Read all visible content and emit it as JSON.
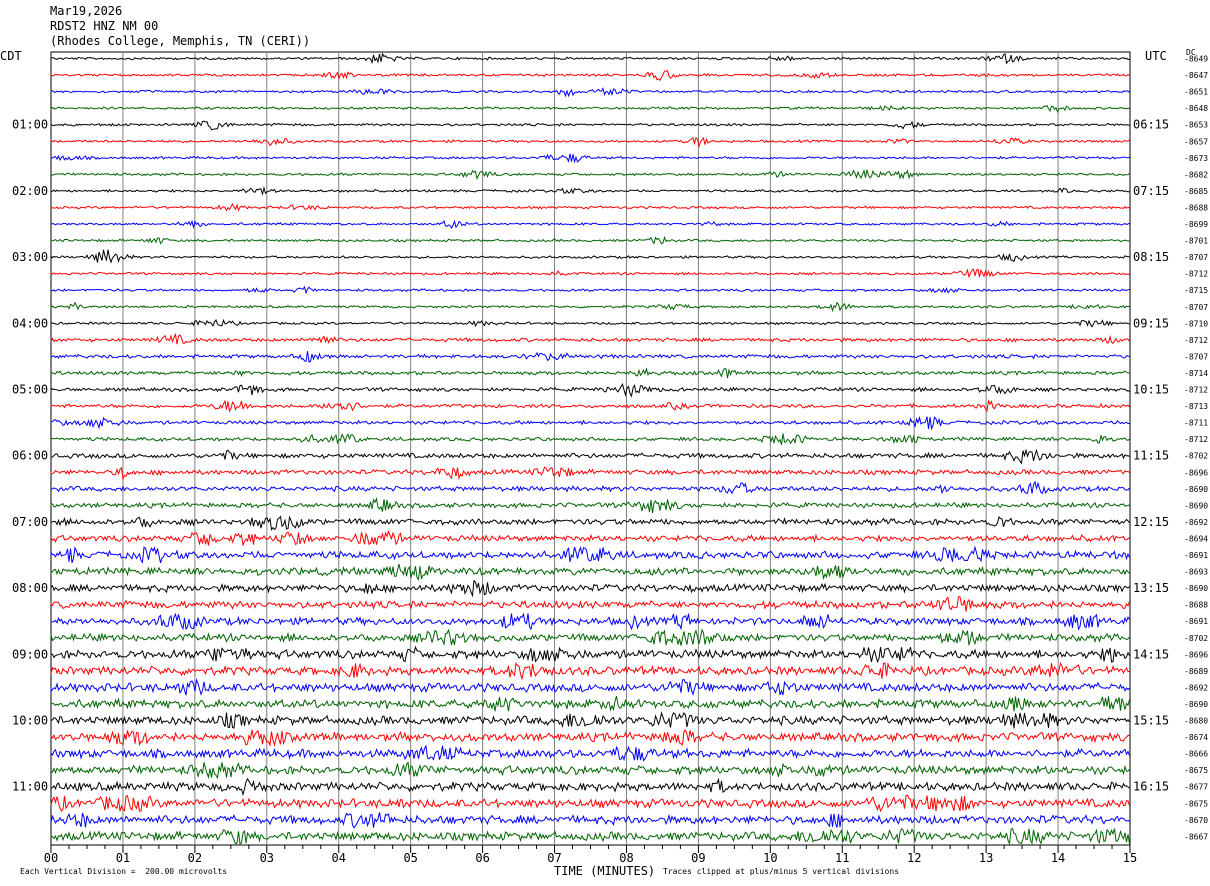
{
  "header": {
    "date": "Mar19,2026",
    "station": "RDST2 HNZ NM 00",
    "location": "(Rhodes College, Memphis, TN (CERI))"
  },
  "axes": {
    "left_zone": "CDT",
    "right_zone": "UTC",
    "dc_label": "DC",
    "xlabel": "TIME (MINUTES)"
  },
  "footer": {
    "scale": "Each Vertical Division =  200.00 microvolts",
    "clip": "Traces clipped at plus/minus 5 vertical divisions"
  },
  "colors": {
    "trace_cycle": [
      "#000000",
      "#ff0000",
      "#0000ff",
      "#006400"
    ],
    "grid": "#808080"
  },
  "chart_data": {
    "type": "line",
    "title": "",
    "xlim": [
      0,
      15
    ],
    "x_ticks": [
      "00",
      "01",
      "02",
      "03",
      "04",
      "05",
      "06",
      "07",
      "08",
      "09",
      "10",
      "11",
      "12",
      "13",
      "14",
      "15"
    ],
    "left_hour_labels": [
      "01:00",
      "02:00",
      "03:00",
      "04:00",
      "05:00",
      "06:00",
      "07:00",
      "08:00",
      "09:00",
      "10:00",
      "11:00"
    ],
    "right_hour_labels": [
      "06:15",
      "07:15",
      "08:15",
      "09:15",
      "10:15",
      "11:15",
      "12:15",
      "13:15",
      "14:15",
      "15:15",
      "16:15"
    ],
    "dc_offsets": [
      -8649,
      -8647,
      -8651,
      -8648,
      -8653,
      -8657,
      -8673,
      -8682,
      -8685,
      -8688,
      -8699,
      -8701,
      -8707,
      -8712,
      -8715,
      -8707,
      -8710,
      -8712,
      -8707,
      -8714,
      -8712,
      -8713,
      -8711,
      -8712,
      -8702,
      -8696,
      -8690,
      -8690,
      -8692,
      -8694,
      -8691,
      -8693,
      -8690,
      -8688,
      -8691,
      -8702,
      -8696,
      -8689,
      -8692,
      -8690,
      -8680,
      -8674,
      -8666,
      -8675,
      -8677,
      -8675,
      -8670,
      -8667
    ],
    "trace_amplitude": [
      1,
      1,
      1,
      1,
      1,
      1,
      1,
      1,
      1,
      1,
      1,
      1,
      1,
      1,
      1,
      1,
      1,
      1.5,
      1.5,
      1.5,
      1.5,
      1.5,
      1.5,
      1.5,
      2,
      2,
      2,
      2,
      2.5,
      2.5,
      3,
      3,
      3,
      3,
      3,
      3,
      3.5,
      3.5,
      3.5,
      3.5,
      3.5,
      3.5,
      3.5,
      3.5,
      3.5,
      3.5,
      3.5,
      3.5
    ]
  }
}
